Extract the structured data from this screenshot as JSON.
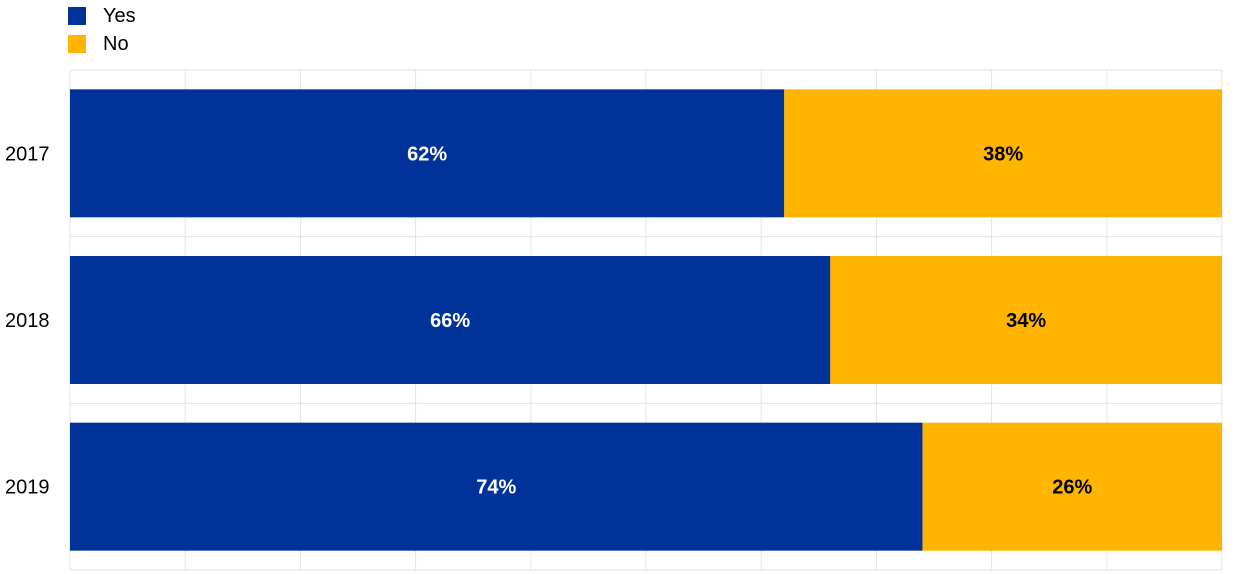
{
  "chart_data": {
    "type": "bar",
    "orientation": "horizontal",
    "stacked": true,
    "categories": [
      "2017",
      "2018",
      "2019"
    ],
    "series": [
      {
        "name": "Yes",
        "values": [
          62,
          66,
          74
        ],
        "color": "#003299",
        "label_color": "#ffffff"
      },
      {
        "name": "No",
        "values": [
          38,
          34,
          26
        ],
        "color": "#FFB400",
        "label_color": "#000000"
      }
    ],
    "data_labels": [
      [
        "62%",
        "38%"
      ],
      [
        "66%",
        "34%"
      ],
      [
        "74%",
        "26%"
      ]
    ],
    "xlim": [
      0,
      100
    ],
    "grid": true,
    "legend_position": "top-left"
  }
}
